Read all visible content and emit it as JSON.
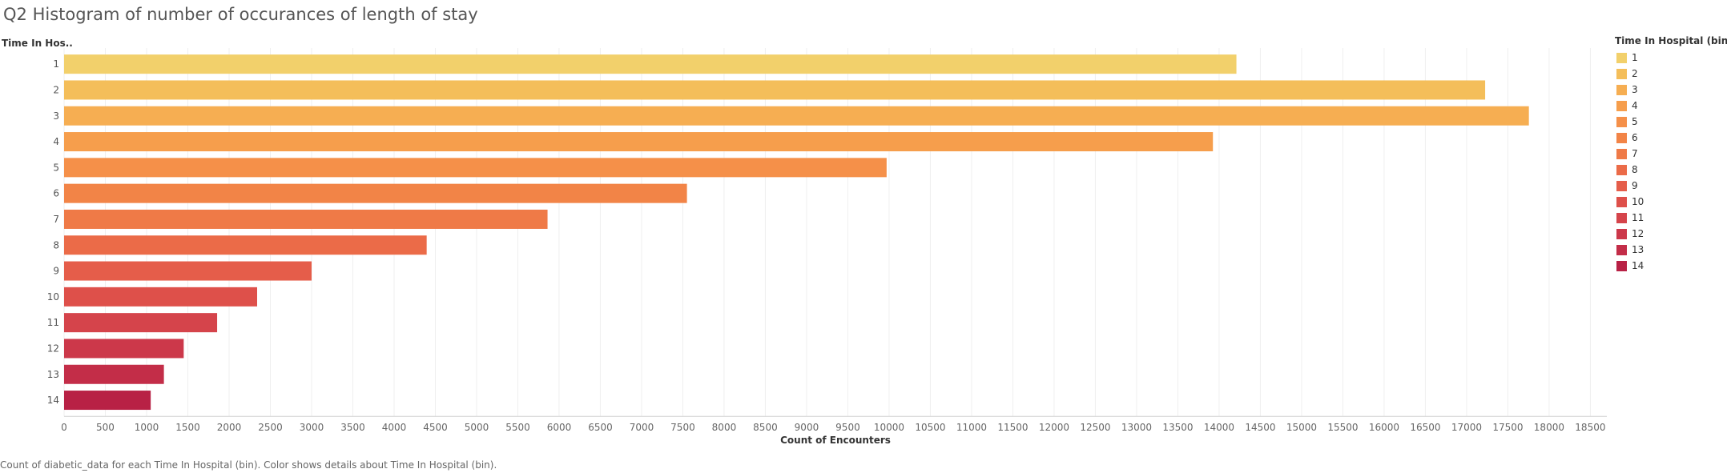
{
  "title": "Q2 Histogram of number of occurances of length of stay",
  "caption": "Count of diabetic_data for each Time In Hospital (bin).  Color shows details about Time In Hospital (bin).",
  "legend": {
    "title": "Time In Hospital (bin)",
    "placement": "right"
  },
  "chart_data": {
    "type": "bar",
    "orientation": "horizontal",
    "ylabel": "Time In Hos..",
    "xlabel": "Count of Encounters",
    "categories": [
      "1",
      "2",
      "3",
      "4",
      "5",
      "6",
      "7",
      "8",
      "9",
      "10",
      "11",
      "12",
      "13",
      "14"
    ],
    "values": [
      14210,
      17225,
      17755,
      13925,
      9970,
      7550,
      5860,
      4395,
      3000,
      2340,
      1855,
      1450,
      1210,
      1050
    ],
    "colors": [
      "#F2D06B",
      "#F4BE5A",
      "#F6AE52",
      "#F69E4C",
      "#F59049",
      "#F28447",
      "#EF7A47",
      "#EB6B48",
      "#E55D4A",
      "#DE504A",
      "#D5444B",
      "#CC384A",
      "#C32D48",
      "#B82145"
    ],
    "xlim": [
      0,
      18700
    ],
    "xticks": [
      0,
      500,
      1000,
      1500,
      2000,
      2500,
      3000,
      3500,
      4000,
      4500,
      5000,
      5500,
      6000,
      6500,
      7000,
      7500,
      8000,
      8500,
      9000,
      9500,
      10000,
      10500,
      11000,
      11500,
      12000,
      12500,
      13000,
      13500,
      14000,
      14500,
      15000,
      15500,
      16000,
      16500,
      17000,
      17500,
      18000,
      18500
    ],
    "grid": "vertical",
    "legend_entries": [
      "1",
      "2",
      "3",
      "4",
      "5",
      "6",
      "7",
      "8",
      "9",
      "10",
      "11",
      "12",
      "13",
      "14"
    ]
  }
}
